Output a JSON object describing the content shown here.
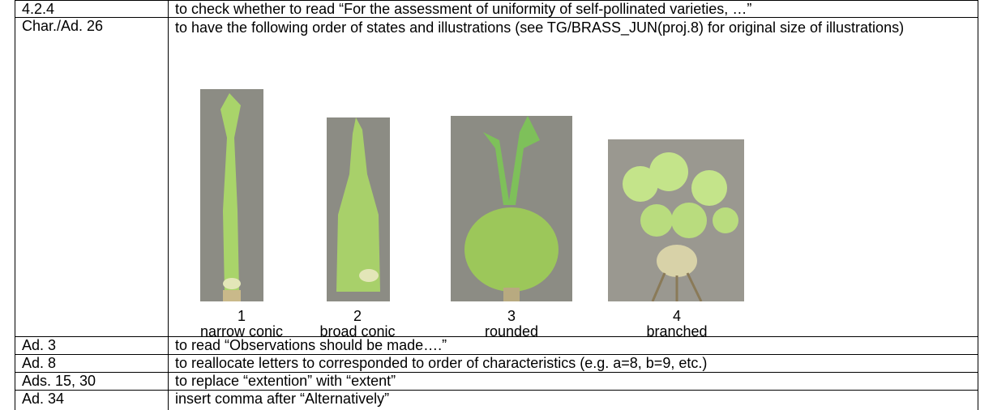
{
  "table": {
    "rows": [
      {
        "label": "4.2.4",
        "text": "to check whether to read “For the assessment of uniformity of self-pollinated varieties, …”"
      },
      {
        "label": "Char./Ad. 26",
        "text": "to have the following order of states and illustrations (see TG/BRASS_JUN(proj.8) for original size of illustrations)",
        "figures": [
          {
            "number": "1",
            "caption": "narrow conic"
          },
          {
            "number": "2",
            "caption": "broad conic"
          },
          {
            "number": "3",
            "caption": "rounded"
          },
          {
            "number": "4",
            "caption": "branched"
          }
        ]
      },
      {
        "label": "Ad. 3",
        "text": "to read “Observations should be made….”"
      },
      {
        "label": "Ad. 8",
        "text": "to reallocate letters to corresponded to order of characteristics (e.g. a=8, b=9, etc.)"
      },
      {
        "label": "Ads. 15, 30",
        "text": "to replace “extention” with “extent”"
      },
      {
        "label": "Ad. 34",
        "text": "insert comma after “Alternatively”"
      }
    ]
  }
}
